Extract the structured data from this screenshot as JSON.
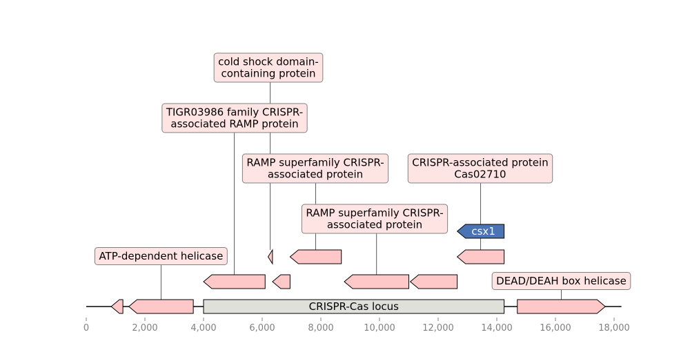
{
  "locus": {
    "label": "CRISPR-Cas locus",
    "start": 4000,
    "end": 14250,
    "color": "#e0e0da"
  },
  "axis": {
    "min": 0,
    "max": 18250,
    "ticks": [
      {
        "value": 0,
        "label": "0"
      },
      {
        "value": 2000,
        "label": "2,000"
      },
      {
        "value": 4000,
        "label": "4,000"
      },
      {
        "value": 6000,
        "label": "6,000"
      },
      {
        "value": 8000,
        "label": "8,000"
      },
      {
        "value": 10000,
        "label": "10,000"
      },
      {
        "value": 12000,
        "label": "12,000"
      },
      {
        "value": 14000,
        "label": "14,000"
      },
      {
        "value": 16000,
        "label": "16,000"
      },
      {
        "value": 18000,
        "label": "18,000"
      }
    ],
    "tick_color": "#808080"
  },
  "colors": {
    "feature": "#ffc8c8",
    "label_box": "#ffe4e4",
    "label_border": "#808080",
    "highlight": "#4a74b4"
  },
  "features": [
    {
      "start": 850,
      "end": 1250,
      "strand": -1,
      "level": 0
    },
    {
      "start": 1450,
      "end": 3650,
      "strand": -1,
      "level": 0,
      "label": "ATP-dependent helicase"
    },
    {
      "start": 14700,
      "end": 17700,
      "strand": 1,
      "level": 0,
      "label": "DEAD/DEAH box helicase"
    },
    {
      "start": 4000,
      "end": 6100,
      "strand": -1,
      "level": 1,
      "label": "TIGR03986 family CRISPR-associated RAMP protein"
    },
    {
      "start": 6350,
      "end": 6950,
      "strand": -1,
      "level": 1
    },
    {
      "start": 8800,
      "end": 11000,
      "strand": -1,
      "level": 1,
      "label": "RAMP superfamily CRISPR-associated protein"
    },
    {
      "start": 11050,
      "end": 12650,
      "strand": -1,
      "level": 1
    },
    {
      "start": 6200,
      "end": 6350,
      "strand": -1,
      "level": 2,
      "label": "cold shock domain-containing protein"
    },
    {
      "start": 6950,
      "end": 8700,
      "strand": -1,
      "level": 2,
      "label": "RAMP superfamily CRISPR-associated protein"
    },
    {
      "start": 12650,
      "end": 14250,
      "strand": -1,
      "level": 2,
      "label": "CRISPR-associated protein Cas02710"
    },
    {
      "start": 12650,
      "end": 14250,
      "strand": -1,
      "level": 3,
      "label": "csx1",
      "highlight": true
    }
  ]
}
